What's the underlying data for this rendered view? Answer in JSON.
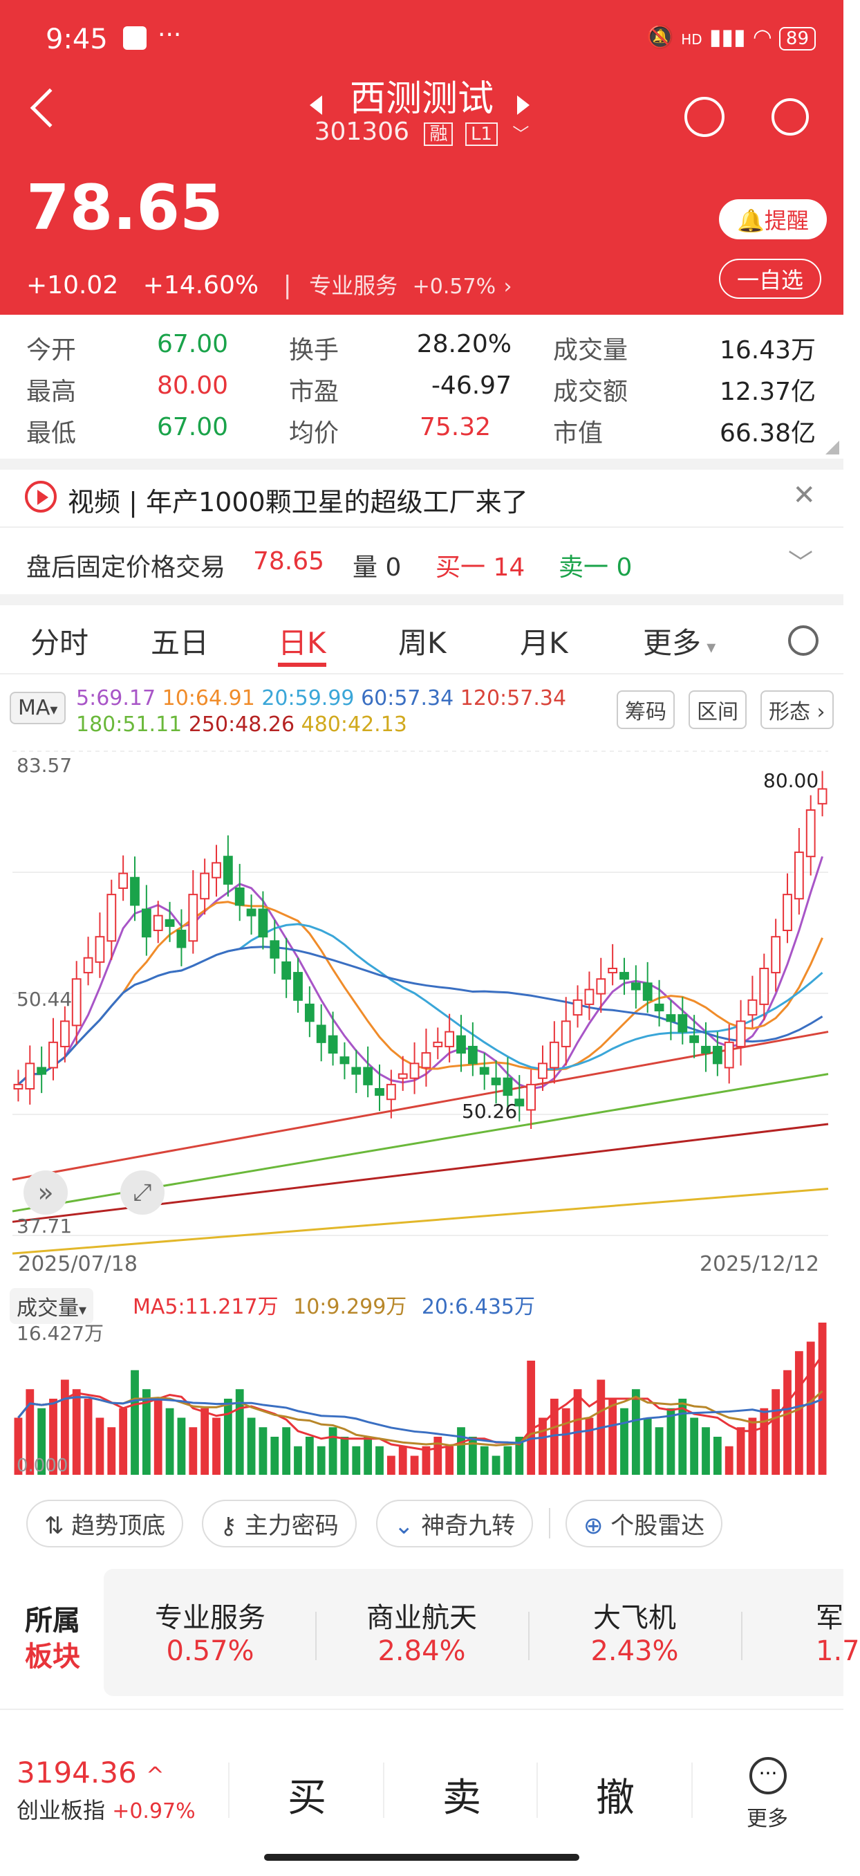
{
  "status": {
    "time": "9:45",
    "battery": "89",
    "network": "HD"
  },
  "header": {
    "title": "西测测试",
    "code": "301306",
    "tag1": "融",
    "tag2": "L1",
    "price": "78.65",
    "change": "+10.02",
    "change_pct": "+14.60%",
    "sector_name": "专业服务",
    "sector_pct": "+0.57%",
    "remind_label": "提醒",
    "watch_label": "一自选"
  },
  "quote": {
    "open_label": "今开",
    "open_value": "67.00",
    "high_label": "最高",
    "high_value": "80.00",
    "low_label": "最低",
    "low_value": "67.00",
    "turnover_label": "换手",
    "turnover_value": "28.20%",
    "pe_label": "市盈",
    "pe_value": "-46.97",
    "avg_label": "均价",
    "avg_value": "75.32",
    "volume_label": "成交量",
    "volume_value": "16.43万",
    "amount_label": "成交额",
    "amount_value": "12.37亿",
    "cap_label": "市值",
    "cap_value": "66.38亿"
  },
  "news": {
    "text": "视频 | 年产1000颗卫星的超级工厂来了"
  },
  "afterhours": {
    "label": "盘后固定价格交易",
    "price": "78.65",
    "vol": "量 0",
    "buy": "买一 14",
    "sell": "卖一 0"
  },
  "tabs": [
    "分时",
    "五日",
    "日K",
    "周K",
    "月K",
    "更多"
  ],
  "ma": {
    "selector": "MA",
    "ma5": "5:69.17",
    "ma10": "10:64.91",
    "ma20": "20:59.99",
    "ma60": "60:57.34",
    "ma120": "120:57.34",
    "ma180": "180:51.11",
    "ma250": "250:48.26",
    "ma480": "480:42.13",
    "btn1": "筹码",
    "btn2": "区间",
    "btn3": "形态"
  },
  "chart_data": {
    "type": "candlestick",
    "y_top_label": "83.57",
    "y_bottom_label": "37.71",
    "high_marker": "80.00",
    "low_marker": "50.26",
    "left_mark": "50.44",
    "x_start": "2025/07/18",
    "x_end": "2025/12/12",
    "ylim": [
      37.71,
      83.57
    ],
    "closes": [
      52,
      54,
      53,
      56,
      58,
      62,
      64,
      66,
      70,
      72,
      69,
      66,
      68,
      67,
      65,
      70,
      72,
      73,
      71,
      69,
      68,
      66,
      64,
      62,
      60,
      58,
      56,
      55,
      54,
      53,
      52,
      51,
      52,
      53,
      54,
      55,
      56,
      57,
      55,
      54,
      53,
      52,
      51,
      50,
      52,
      54,
      56,
      58,
      60,
      61,
      62,
      63,
      62,
      61,
      60,
      59,
      58,
      57,
      56,
      55,
      54,
      56,
      58,
      60,
      63,
      66,
      70,
      74,
      78,
      80
    ],
    "series_colors": {
      "ma5": "#a855c7",
      "ma10": "#f08c2a",
      "ma20": "#3aa6d8",
      "ma60": "#3a6fc2",
      "ma120": "#d9443a",
      "ma180": "#6ab83a",
      "ma250": "#b52222",
      "ma480": "#e2b72a"
    }
  },
  "volume": {
    "selector": "成交量",
    "ma5": "MA5:11.217万",
    "ma10": "10:9.299万",
    "ma20": "20:6.435万",
    "top_label": "16.427万",
    "bottom_label": "0.000",
    "values": [
      6,
      9,
      7,
      8,
      10,
      9,
      8,
      6,
      5,
      7,
      11,
      9,
      8,
      7,
      6,
      5,
      7,
      6,
      8,
      9,
      6,
      5,
      4,
      5,
      3,
      4,
      3,
      5,
      4,
      3,
      4,
      3,
      2,
      3,
      2,
      3,
      4,
      3,
      5,
      4,
      3,
      2,
      3,
      4,
      12,
      6,
      8,
      7,
      9,
      6,
      10,
      8,
      7,
      9,
      6,
      5,
      7,
      8,
      6,
      5,
      4,
      3,
      5,
      6,
      7,
      9,
      11,
      13,
      14,
      16
    ]
  },
  "tools": [
    "趋势顶底",
    "主力密码",
    "神奇九转",
    "个股雷达"
  ],
  "sectors": {
    "label1": "所属",
    "label2": "板块",
    "items": [
      {
        "name": "专业服务",
        "pct": "0.57%"
      },
      {
        "name": "商业航天",
        "pct": "2.84%"
      },
      {
        "name": "大飞机",
        "pct": "2.43%"
      },
      {
        "name": "军",
        "pct": "1.7"
      }
    ]
  },
  "bottom": {
    "index_value": "3194.36",
    "index_name": "创业板指",
    "index_pct": "+0.97%",
    "buy": "买",
    "sell": "卖",
    "cancel": "撤",
    "more": "更多"
  }
}
